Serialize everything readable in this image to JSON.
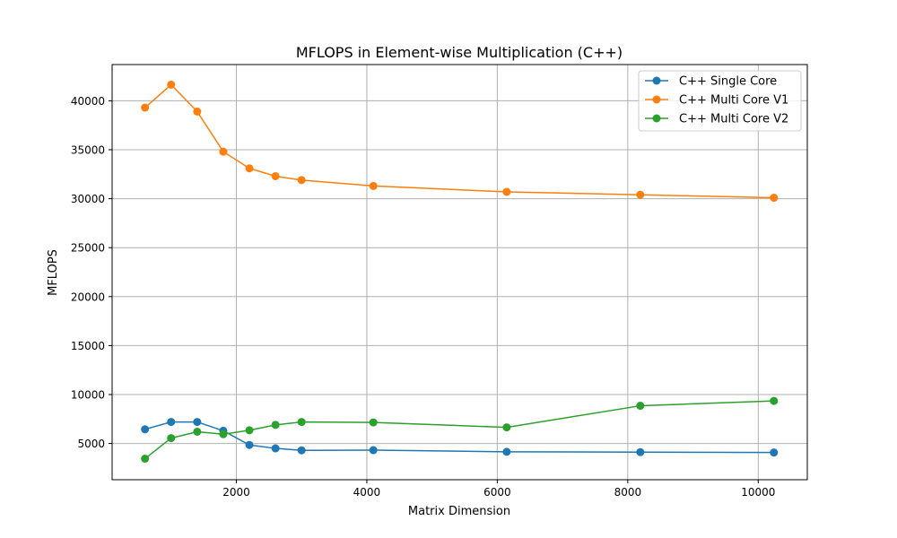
{
  "chart_data": {
    "type": "line",
    "title": "MFLOPS in Element-wise Multiplication (C++)",
    "xlabel": "Matrix Dimension",
    "ylabel": "MFLOPS",
    "xlim": [
      96,
      10752
    ],
    "ylim": [
      1300,
      43700
    ],
    "xticks": [
      2000,
      4000,
      6000,
      8000,
      10000
    ],
    "yticks": [
      5000,
      10000,
      15000,
      20000,
      25000,
      30000,
      35000,
      40000
    ],
    "grid": true,
    "legend_position": "top-right",
    "x": [
      600,
      1000,
      1400,
      1800,
      2200,
      2600,
      3000,
      4100,
      6144,
      8192,
      10240
    ],
    "series": [
      {
        "name": "C++ Single Core",
        "color": "#1f77b4",
        "values": [
          6450,
          7200,
          7200,
          6300,
          4850,
          4500,
          4300,
          4320,
          4150,
          4120,
          4080
        ]
      },
      {
        "name": "C++ Multi Core V1",
        "color": "#ff7f0e",
        "values": [
          39300,
          41650,
          38900,
          34800,
          33100,
          32300,
          31900,
          31300,
          30700,
          30400,
          30100
        ]
      },
      {
        "name": "C++ Multi Core V2",
        "color": "#2ca02c",
        "values": [
          3450,
          5550,
          6200,
          5950,
          6350,
          6900,
          7200,
          7150,
          6650,
          8850,
          9350
        ]
      }
    ]
  }
}
